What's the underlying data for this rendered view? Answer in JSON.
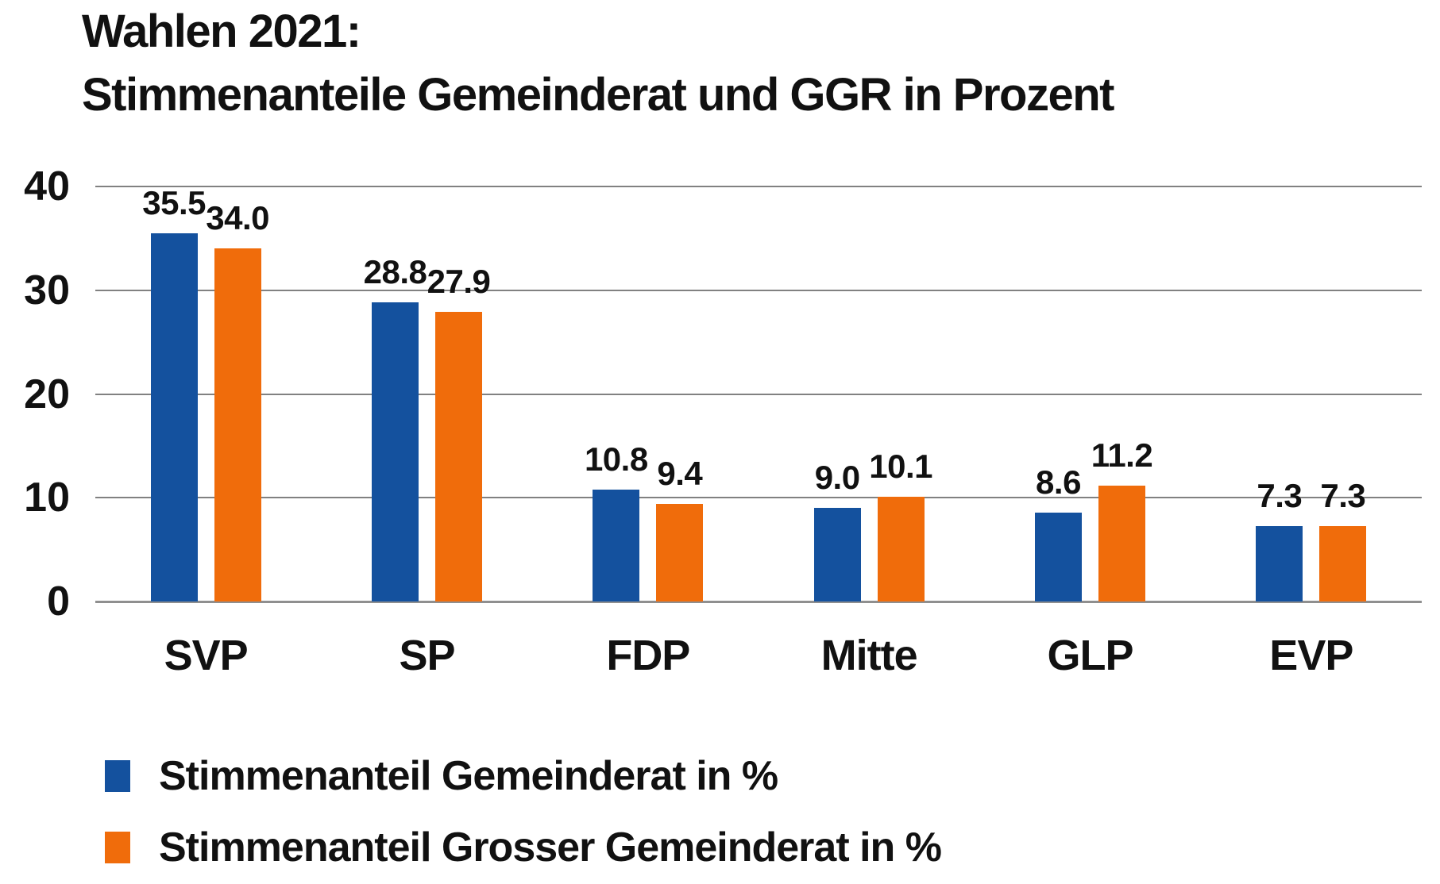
{
  "title": {
    "line1": "Wahlen 2021:",
    "line2": "Stimmenanteile Gemeinderat und GGR in Prozent"
  },
  "colors": {
    "series_gemeinderat": "#14519E",
    "series_grosser_gemeinderat": "#F06C0B",
    "gridline": "#818181",
    "text": "#111111",
    "background": "#FFFFFF"
  },
  "chart_data": {
    "type": "bar",
    "title": "Wahlen 2021: Stimmenanteile Gemeinderat und GGR in Prozent",
    "categories": [
      "SVP",
      "SP",
      "FDP",
      "Mitte",
      "GLP",
      "EVP"
    ],
    "series": [
      {
        "name": "Stimmenanteil Gemeinderat in %",
        "color": "#14519E",
        "values": [
          35.5,
          28.8,
          10.8,
          9.0,
          8.6,
          7.3
        ]
      },
      {
        "name": "Stimmenanteil Grosser Gemeinderat in %",
        "color": "#F06C0B",
        "values": [
          34.0,
          27.9,
          9.4,
          10.1,
          11.2,
          7.3
        ]
      }
    ],
    "y_axis": {
      "min": 0,
      "max": 40,
      "ticks": [
        0,
        10,
        20,
        30,
        40
      ]
    },
    "xlabel": "",
    "ylabel": "",
    "grid": true,
    "value_labels": true,
    "value_label_decimals": 1,
    "legend_position": "bottom-left"
  }
}
